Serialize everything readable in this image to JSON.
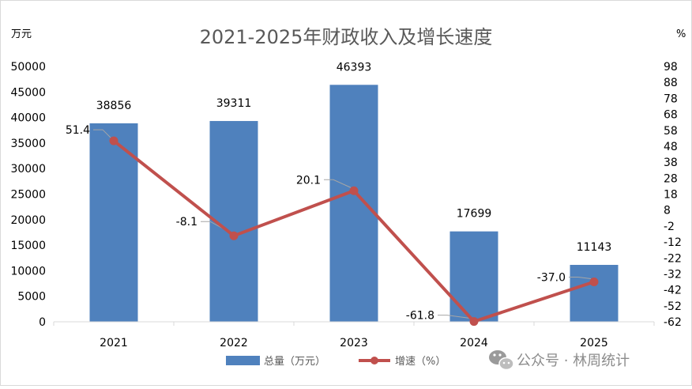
{
  "chart_data": {
    "type": "bar+line",
    "title": "2021-2025年财政收入及增长速度",
    "categories": [
      "2021",
      "2022",
      "2023",
      "2024",
      "2025"
    ],
    "left_axis": {
      "unit_label": "万元",
      "ticks": [
        "0",
        "5000",
        "10000",
        "15000",
        "20000",
        "25000",
        "30000",
        "35000",
        "40000",
        "45000",
        "50000"
      ],
      "ylim": [
        0,
        50000
      ]
    },
    "right_axis": {
      "unit_label": "%",
      "ticks": [
        "-62",
        "-52",
        "-42",
        "-32",
        "-22",
        "-12",
        "-2",
        "8",
        "18",
        "28",
        "38",
        "48",
        "58",
        "68",
        "78",
        "88",
        "98"
      ],
      "ylim": [
        -62,
        98
      ]
    },
    "series": [
      {
        "name": "总量（万元）",
        "kind": "bar",
        "color": "#4f81bd",
        "values": [
          38856,
          39311,
          46393,
          17699,
          11143
        ],
        "labels": [
          "38856",
          "39311",
          "46393",
          "17699",
          "11143"
        ]
      },
      {
        "name": "增速（%）",
        "kind": "line",
        "color": "#c0504d",
        "values": [
          51.4,
          -8.1,
          20.1,
          -61.8,
          -37.0
        ],
        "labels": [
          "51.4",
          "-8.1",
          "20.1",
          "-61.8",
          "-37.0"
        ]
      }
    ],
    "legend_position": "bottom",
    "grid": false
  },
  "watermark": {
    "text": "公众号 · 林周统计",
    "icon": "wechat-icon"
  }
}
